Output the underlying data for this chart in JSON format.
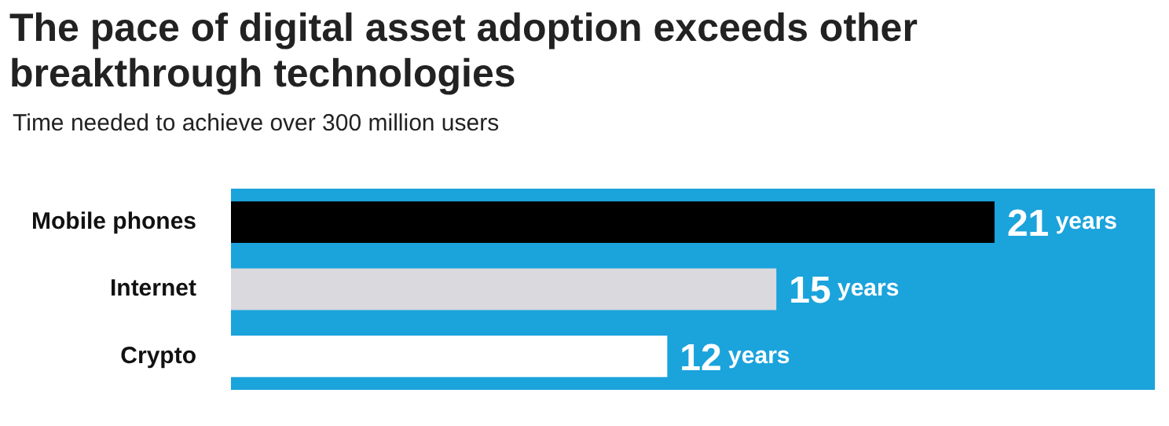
{
  "chart_data": {
    "type": "bar",
    "orientation": "horizontal",
    "title": "The pace of digital asset adoption exceeds other breakthrough technologies",
    "subtitle": "Time needed to achieve over 300 million users",
    "categories": [
      "Mobile phones",
      "Internet",
      "Crypto"
    ],
    "values": [
      21,
      15,
      12
    ],
    "colors": [
      "#000000",
      "#d9d9de",
      "#ffffff"
    ],
    "value_labels": [
      "21 years",
      "15 years",
      "12 years"
    ]
  }
}
